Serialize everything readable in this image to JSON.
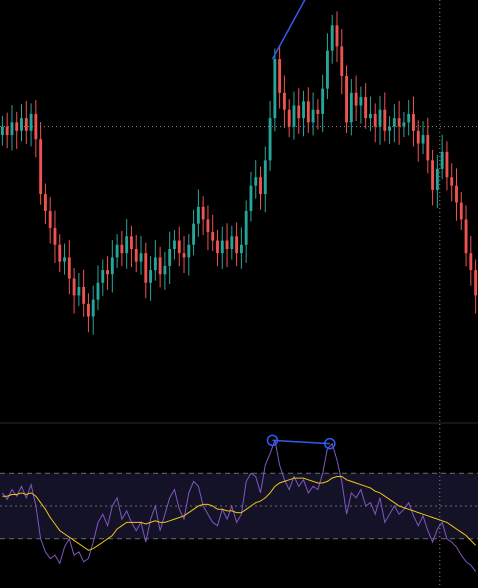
{
  "colors": {
    "background": "#000000",
    "up_candle": "#26a69a",
    "down_candle": "#ef5350",
    "trendline": "#2f5cf0",
    "rsi_line": "#7e57c2",
    "rsi_ma_line": "#f0c419",
    "rsi_band_fill": "#141226",
    "crosshair": "#8a8a8a",
    "pane_separator": "#2a2a2a"
  },
  "chart_data": [
    {
      "type": "candlestick",
      "pane": "price",
      "grid": false,
      "crosshair": {
        "x": 92,
        "y": 7.0
      },
      "ylim": [
        0,
        10
      ],
      "x_range": [
        0,
        100
      ],
      "closes": [
        7.0,
        6.8,
        7.1,
        6.9,
        7.2,
        6.9,
        7.3,
        6.7,
        5.4,
        5.0,
        4.6,
        4.2,
        3.8,
        3.9,
        3.4,
        3.0,
        3.2,
        2.8,
        2.5,
        2.9,
        3.3,
        3.6,
        3.5,
        3.9,
        4.2,
        4.0,
        4.4,
        4.1,
        3.8,
        4.0,
        3.3,
        3.6,
        3.9,
        3.5,
        3.7,
        4.1,
        4.3,
        4.0,
        3.9,
        4.2,
        4.7,
        5.1,
        4.8,
        4.5,
        4.3,
        4.0,
        4.3,
        4.1,
        4.4,
        4.0,
        4.2,
        5.0,
        5.6,
        5.8,
        5.4,
        6.2,
        7.2,
        8.6,
        7.8,
        7.4,
        7.0,
        7.5,
        7.2,
        7.6,
        7.1,
        7.4,
        7.3,
        7.9,
        8.8,
        9.4,
        8.9,
        8.2,
        7.1,
        7.8,
        7.5,
        7.7,
        7.2,
        7.3,
        7.0,
        7.4,
        6.9,
        7.0,
        7.2,
        7.0,
        7.1,
        7.3,
        6.9,
        6.6,
        6.8,
        6.2,
        5.5,
        6.0,
        6.4,
        5.8,
        5.6,
        5.2,
        4.8,
        4.0,
        3.6,
        3.0
      ],
      "trendline": [
        {
          "x": 57,
          "y": 8.6
        },
        {
          "x": 71,
          "y": 11.5
        }
      ]
    },
    {
      "type": "line",
      "pane": "rsi",
      "grid": false,
      "ylim": [
        0,
        100
      ],
      "reference_levels": [
        70,
        50,
        30
      ],
      "band": [
        30,
        70
      ],
      "series": [
        {
          "values": [
            58,
            54,
            60,
            56,
            62,
            55,
            63,
            50,
            30,
            22,
            18,
            20,
            15,
            25,
            30,
            20,
            22,
            16,
            18,
            28,
            40,
            45,
            38,
            50,
            55,
            42,
            47,
            40,
            35,
            40,
            28,
            42,
            50,
            35,
            45,
            55,
            60,
            48,
            42,
            58,
            65,
            62,
            50,
            45,
            40,
            38,
            48,
            42,
            50,
            40,
            45,
            65,
            70,
            68,
            58,
            75,
            82,
            90,
            75,
            66,
            60,
            68,
            62,
            66,
            58,
            62,
            60,
            70,
            85,
            88,
            78,
            65,
            45,
            58,
            55,
            60,
            50,
            52,
            45,
            55,
            40,
            45,
            50,
            45,
            48,
            52,
            44,
            38,
            44,
            35,
            28,
            36,
            40,
            30,
            28,
            25,
            20,
            16,
            14,
            10
          ]
        },
        {
          "values": [
            56,
            56,
            57,
            57,
            58,
            57,
            58,
            56,
            52,
            48,
            43,
            39,
            35,
            33,
            31,
            29,
            27,
            25,
            23,
            24,
            26,
            28,
            30,
            32,
            36,
            38,
            40,
            40,
            40,
            40,
            39,
            40,
            41,
            40,
            40,
            41,
            42,
            43,
            44,
            46,
            48,
            50,
            51,
            51,
            50,
            48,
            48,
            47,
            47,
            46,
            46,
            48,
            50,
            52,
            53,
            55,
            58,
            62,
            64,
            65,
            66,
            67,
            67,
            67,
            66,
            65,
            64,
            64,
            65,
            67,
            68,
            68,
            66,
            65,
            64,
            63,
            62,
            61,
            59,
            58,
            56,
            54,
            52,
            50,
            49,
            48,
            47,
            46,
            45,
            44,
            43,
            42,
            41,
            40,
            38,
            36,
            34,
            32,
            29,
            26
          ]
        }
      ],
      "divergence_line": [
        {
          "x": 57,
          "y": 90
        },
        {
          "x": 69,
          "y": 88
        }
      ]
    }
  ]
}
